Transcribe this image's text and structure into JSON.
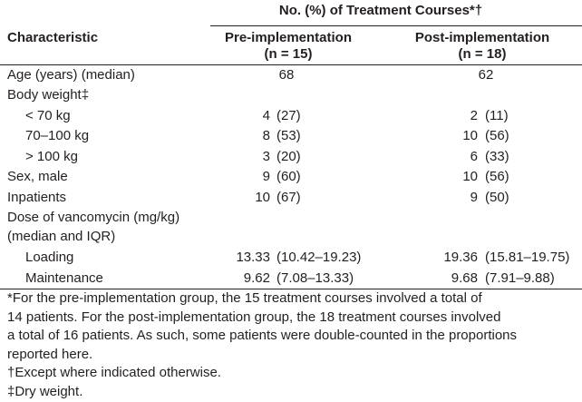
{
  "header": {
    "group_title": "No. (%) of Treatment Courses*†",
    "characteristic": "Characteristic",
    "columns": [
      {
        "title": "Pre-implementation",
        "n": "(n = 15)"
      },
      {
        "title": "Post-implementation",
        "n": "(n = 18)"
      }
    ]
  },
  "rows": [
    {
      "label": "Age (years) (median)",
      "values": [
        "68",
        "62"
      ]
    },
    {
      "label": "Body weight‡"
    },
    {
      "label": "< 70 kg",
      "values": [
        [
          "4",
          "(27)"
        ],
        [
          "2",
          "(11)"
        ]
      ]
    },
    {
      "label": "70–100 kg",
      "values": [
        [
          "8",
          "(53)"
        ],
        [
          "10",
          "(56)"
        ]
      ]
    },
    {
      "label": "> 100 kg",
      "values": [
        [
          "3",
          "(20)"
        ],
        [
          "6",
          "(33)"
        ]
      ]
    },
    {
      "label": "Sex, male",
      "values": [
        [
          "9",
          "(60)"
        ],
        [
          "10",
          "(56)"
        ]
      ]
    },
    {
      "label": "Inpatients",
      "values": [
        [
          "10",
          "(67)"
        ],
        [
          "9",
          "(50)"
        ]
      ]
    },
    {
      "label": [
        "Dose of vancomycin (mg/kg)",
        "(median and IQR)"
      ]
    },
    {
      "label": "Loading",
      "values": [
        [
          "13.33",
          "(10.42–19.23)"
        ],
        [
          "19.36",
          "(15.81–19.75)"
        ]
      ]
    },
    {
      "label": "Maintenance",
      "values": [
        [
          "9.62",
          "(7.08–13.33)"
        ],
        [
          "9.68",
          "(7.91–9.88)"
        ]
      ]
    }
  ],
  "footnotes": [
    [
      "*For the pre-implementation group, the 15 treatment courses involved a total of",
      "14 patients. For the post-implementation group, the 18 treatment courses involved",
      "a total of 16 patients. As such, some patients were double-counted in the proportions",
      "reported here."
    ],
    "†Except where indicated otherwise.",
    "‡Dry weight."
  ]
}
